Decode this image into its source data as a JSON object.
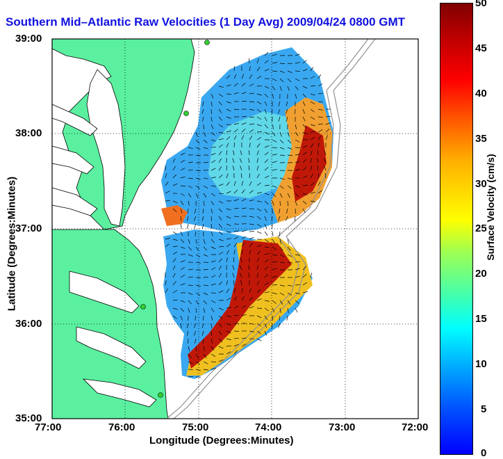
{
  "title": "Southern Mid–Atlantic Raw Velocities (1 Day Avg) 2009/04/24 0800 GMT",
  "axes": {
    "xlabel": "Longitude (Degrees:Minutes)",
    "ylabel": "Latitude (Degrees:Minutes)",
    "xticks": [
      "77:00",
      "76:00",
      "75:00",
      "74:00",
      "73:00",
      "72:00"
    ],
    "yticks": [
      "39:00",
      "38:00",
      "37:00",
      "36:00",
      "35:00"
    ]
  },
  "colorbar": {
    "label": "Surface Velocity (cm/s)",
    "ticks": [
      "50",
      "45",
      "40",
      "35",
      "30",
      "25",
      "20",
      "15",
      "10",
      "5",
      "0"
    ],
    "range": [
      0,
      50
    ],
    "colors": [
      "#0000ff",
      "#00ffff",
      "#ffff00",
      "#ff0000",
      "#800000"
    ]
  },
  "colors": {
    "land": "#5af0a0",
    "water": "#ffffff",
    "title": "#1010e0",
    "vector": "#000000",
    "isobath": "#909090"
  }
}
